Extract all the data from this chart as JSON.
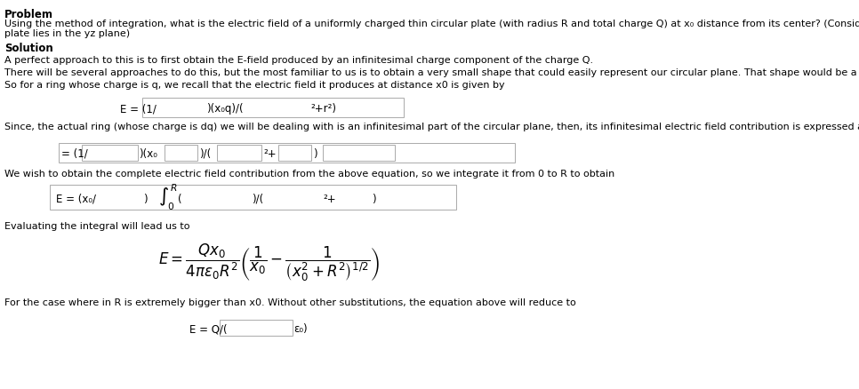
{
  "bg_color": "#ffffff",
  "title_problem": "Problem",
  "problem_text": "Using the method of integration, what is the electric field of a uniformly charged thin circular plate (with radius R and total charge Q) at x₀ distance from its center? (Consider that the surface of the\nplate lies in the yz plane)",
  "title_solution": "Solution",
  "sol_line1": "A perfect approach to this is to first obtain the E-field produced by an infinitesimal charge component of the charge Q.",
  "sol_line2": "There will be several approaches to do this, but the most familiar to us is to obtain a very small shape that could easily represent our circular plane. That shape would be a ring.",
  "sol_line3": "So for a ring whose charge is q, we recall that the electric field it produces at distance x0 is given by",
  "eq1_left": "E = (1/",
  "eq1_mid": ")(x₀q)/(",
  "eq1_right": "2+r²)",
  "sol_line4": "Since, the actual ring (whose charge is dq) we will be dealing with is an infinitesimal part of the circular plane, then, its infinitesimal electric field contribution is expressed as",
  "eq2_left": "= (1/",
  "eq2_mid1": ")(x₀",
  "eq2_mid2": ")/(  ",
  "eq2_right1": "2+",
  "eq2_right2": ")",
  "sol_line5": "We wish to obtain the complete electric field contribution from the above equation, so we integrate it from 0 to R to obtain",
  "eq3_left": "E = (x₀/",
  "eq3_mid": ")/(  ",
  "eq3_right1": "2+",
  "eq3_right2": ")",
  "sol_line6": "Evaluating the integral will lead us to",
  "sol_line7": "For the case where in R is extremely bigger than x0. Without other substitutions, the equation above will reduce to",
  "eq_final_bottom_left": "E = Q/(",
  "eq_final_bottom_right": "ε₀)"
}
